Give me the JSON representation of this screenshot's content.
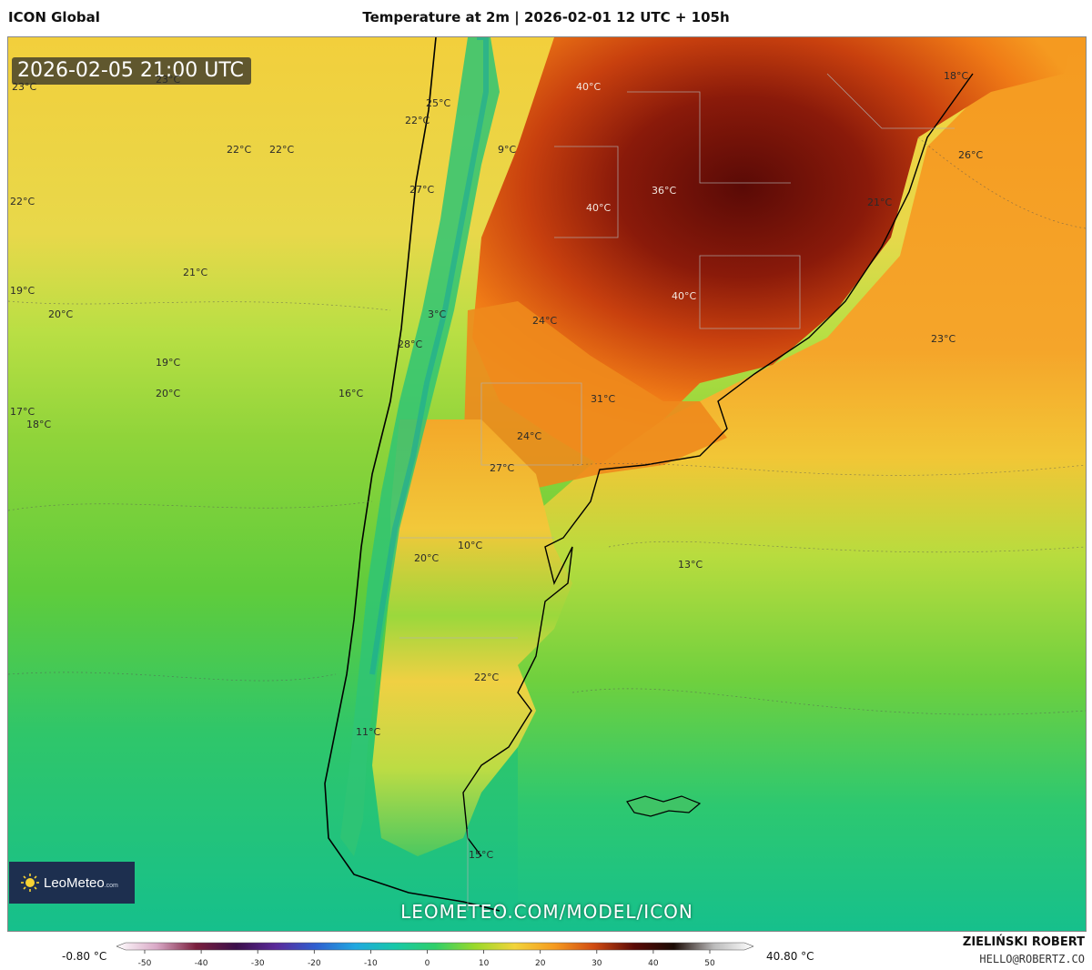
{
  "header": {
    "model": "ICON Global",
    "title": "Temperature at 2m | 2026-02-01 12 UTC + 105h"
  },
  "map": {
    "valid_time": "2026-02-05 21:00 UTC",
    "watermark": "LEOMETEO.COM/MODEL/ICON",
    "logo": {
      "name": "LeoMeteo",
      "suffix": ".com"
    },
    "temperature_labels": [
      "23°C",
      "23°C",
      "25°C",
      "22°C",
      "9°C",
      "22°C",
      "22°C",
      "27°C",
      "22°C",
      "21°C",
      "19°C",
      "20°C",
      "3°C",
      "28°C",
      "19°C",
      "20°C",
      "16°C",
      "17°C",
      "18°C",
      "40°C",
      "40°C",
      "36°C",
      "40°C",
      "24°C",
      "31°C",
      "24°C",
      "27°C",
      "10°C",
      "20°C",
      "13°C",
      "22°C",
      "11°C",
      "15°C",
      "18°C",
      "26°C",
      "21°C",
      "23°C"
    ]
  },
  "colorbar": {
    "min_label": "-0.80 °C",
    "max_label": "40.80 °C",
    "ticks": [
      "-50",
      "-40",
      "-30",
      "-20",
      "-10",
      "0",
      "10",
      "20",
      "30",
      "40",
      "50"
    ],
    "colors": [
      "#ffffff",
      "#d9a8c6",
      "#7a1f3d",
      "#3b0f4a",
      "#5a2a9a",
      "#2f5fd0",
      "#21a8e0",
      "#18c8a8",
      "#2fcf6a",
      "#9ad92a",
      "#f2d43a",
      "#f59a20",
      "#d04a12",
      "#5a0a06",
      "#1a0a05",
      "#bbbbbb",
      "#ffffff"
    ],
    "accent": "#111111"
  },
  "author": {
    "name": "ZIELIŃSKI ROBERT",
    "email": "HELLO@ROBERTZ.CO"
  }
}
